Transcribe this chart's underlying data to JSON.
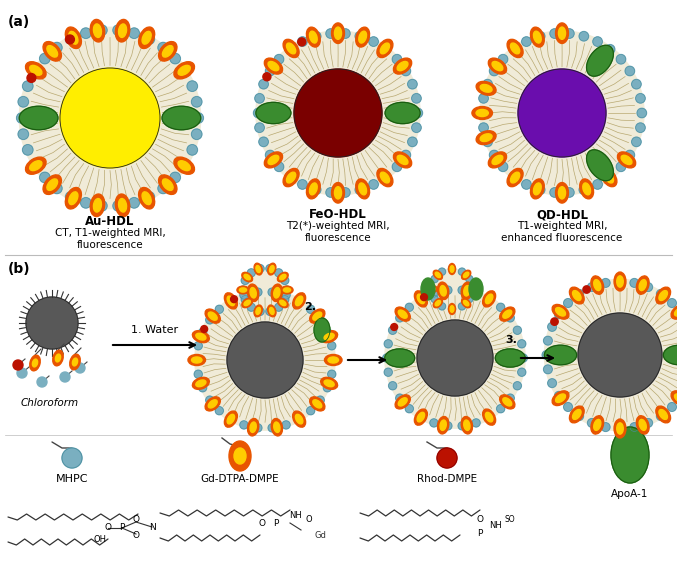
{
  "title_a": "(a)",
  "title_b": "(b)",
  "hdl_labels": [
    {
      "name": "Au-HDL",
      "subtitle": "CT, T1-weighted MRI,\nfluorescence",
      "core_color": "#FFEE00"
    },
    {
      "name": "FeO-HDL",
      "subtitle": "T2(*)-weighted MRI,\nfluorescence",
      "core_color": "#7A0000"
    },
    {
      "name": "QD-HDL",
      "subtitle": "T1-weighted MRI,\nenhanced fluorescence",
      "core_color": "#6A0DAD"
    }
  ],
  "lipid_bg_color": "#F0EBD8",
  "lipid_head_color": "#7AAFC0",
  "lipid_tail_color": "#C8B88A",
  "flame_orange": "#E85500",
  "flame_yellow": "#FFCC00",
  "green_protein": "#3A8C2F",
  "green_protein_dark": "#1A5C10",
  "red_dot": "#BB1100",
  "dark_core": "#505050",
  "bg_color": "#FFFFFF",
  "chloroform_label": "Chloroform",
  "legend_labels": [
    "MHPC",
    "Gd-DTPA-DMPE",
    "Rhod-DMPE",
    "ApoA-1"
  ]
}
